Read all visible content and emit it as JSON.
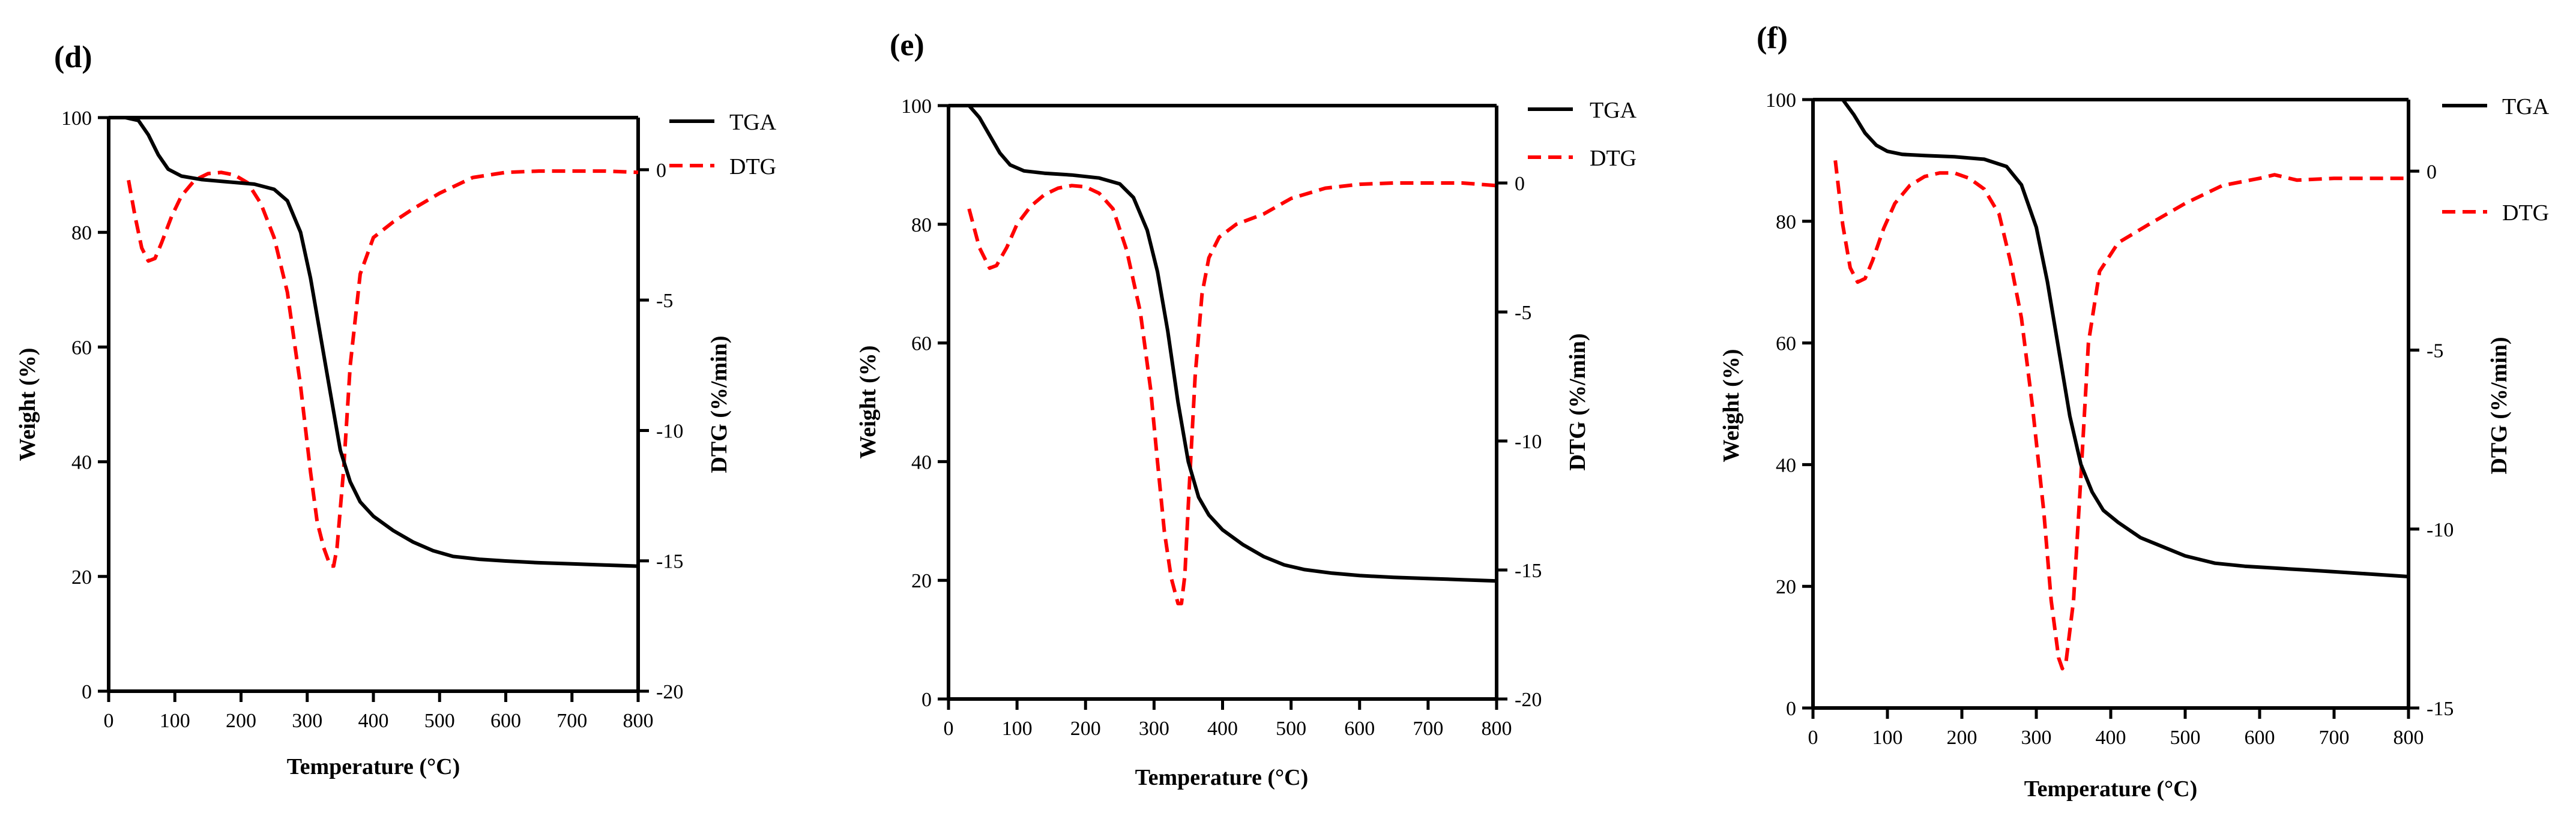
{
  "chart_data": [
    {
      "type": "line",
      "panel_label": "(d)",
      "xlabel": "Temperature (°C)",
      "ylabel_left": "Weight (%)",
      "ylabel_right": "DTG (%/min)",
      "xlim": [
        0,
        800
      ],
      "ylim_left": [
        0,
        100
      ],
      "ylim_right": [
        -20,
        2
      ],
      "x_ticks": [
        0,
        100,
        200,
        300,
        400,
        500,
        600,
        700,
        800
      ],
      "y_left_ticks": [
        0,
        20,
        40,
        60,
        80,
        100
      ],
      "y_right_ticks": [
        0,
        -5,
        -10,
        -15,
        -20
      ],
      "legend": [
        "TGA",
        "DTG"
      ],
      "series": [
        {
          "name": "TGA",
          "x": [
            0,
            25,
            45,
            60,
            75,
            90,
            110,
            140,
            180,
            220,
            250,
            270,
            290,
            305,
            320,
            335,
            350,
            365,
            380,
            400,
            430,
            460,
            490,
            520,
            560,
            600,
            650,
            700,
            750,
            800
          ],
          "values": [
            100,
            100,
            99.5,
            97,
            93.5,
            91,
            89.8,
            89.2,
            88.8,
            88.4,
            87.5,
            85.5,
            80,
            72,
            62,
            52,
            42,
            36.5,
            33,
            30.5,
            28,
            26,
            24.5,
            23.5,
            23,
            22.7,
            22.4,
            22.2,
            22,
            21.8
          ]
        },
        {
          "name": "DTG",
          "x": [
            30,
            40,
            50,
            60,
            70,
            80,
            95,
            110,
            130,
            150,
            170,
            190,
            210,
            230,
            250,
            270,
            290,
            305,
            315,
            325,
            335,
            340,
            345,
            355,
            365,
            380,
            400,
            430,
            460,
            500,
            550,
            600,
            650,
            700,
            750,
            800
          ],
          "values": [
            -0.4,
            -1.8,
            -3.0,
            -3.5,
            -3.4,
            -2.8,
            -1.8,
            -1.0,
            -0.4,
            -0.15,
            -0.1,
            -0.2,
            -0.5,
            -1.3,
            -2.6,
            -4.7,
            -8.3,
            -11.6,
            -13.5,
            -14.5,
            -15.2,
            -15.2,
            -14.5,
            -11.5,
            -7.5,
            -4.0,
            -2.6,
            -2.0,
            -1.5,
            -0.9,
            -0.3,
            -0.1,
            -0.05,
            -0.05,
            -0.05,
            -0.1
          ]
        }
      ]
    },
    {
      "type": "line",
      "panel_label": "(e)",
      "xlabel": "Temperature (°C)",
      "ylabel_left": "Weight (%)",
      "ylabel_right": "DTG (%/min)",
      "xlim": [
        0,
        800
      ],
      "ylim_left": [
        0,
        100
      ],
      "ylim_right": [
        -20,
        3
      ],
      "x_ticks": [
        0,
        100,
        200,
        300,
        400,
        500,
        600,
        700,
        800
      ],
      "y_left_ticks": [
        0,
        20,
        40,
        60,
        80,
        100
      ],
      "y_right_ticks": [
        0,
        -5,
        -10,
        -15,
        -20
      ],
      "legend": [
        "TGA",
        "DTG"
      ],
      "series": [
        {
          "name": "TGA",
          "x": [
            30,
            45,
            60,
            75,
            90,
            110,
            140,
            180,
            220,
            250,
            270,
            290,
            305,
            320,
            335,
            350,
            365,
            380,
            400,
            430,
            460,
            490,
            520,
            560,
            600,
            650,
            700,
            750,
            800
          ],
          "values": [
            100,
            98,
            95,
            92,
            90,
            89,
            88.6,
            88.3,
            87.8,
            86.8,
            84.5,
            79,
            72,
            62,
            50,
            40,
            34,
            31,
            28.5,
            26,
            24,
            22.6,
            21.8,
            21.2,
            20.8,
            20.5,
            20.3,
            20.1,
            19.9
          ]
        },
        {
          "name": "DTG",
          "x": [
            30,
            45,
            60,
            70,
            85,
            100,
            120,
            140,
            160,
            180,
            200,
            220,
            240,
            260,
            280,
            295,
            305,
            315,
            325,
            335,
            340,
            345,
            350,
            360,
            370,
            380,
            395,
            420,
            460,
            500,
            550,
            600,
            650,
            700,
            750,
            800
          ],
          "values": [
            -1.0,
            -2.5,
            -3.3,
            -3.2,
            -2.5,
            -1.6,
            -0.9,
            -0.45,
            -0.2,
            -0.1,
            -0.15,
            -0.4,
            -1.0,
            -2.6,
            -5.0,
            -8.0,
            -10.8,
            -13.5,
            -15.3,
            -16.3,
            -16.3,
            -15.2,
            -12.5,
            -7.5,
            -4.3,
            -2.9,
            -2.1,
            -1.6,
            -1.2,
            -0.6,
            -0.2,
            -0.05,
            0,
            0,
            0,
            -0.1
          ]
        }
      ]
    },
    {
      "type": "line",
      "panel_label": "(f)",
      "xlabel": "Temperature (°C)",
      "ylabel_left": "Weight (%)",
      "ylabel_right": "DTG (%/min)",
      "xlim": [
        0,
        800
      ],
      "ylim_left": [
        0,
        100
      ],
      "ylim_right": [
        -15,
        2
      ],
      "x_ticks": [
        0,
        100,
        200,
        300,
        400,
        500,
        600,
        700,
        800
      ],
      "y_left_ticks": [
        0,
        20,
        40,
        60,
        80,
        100
      ],
      "y_right_ticks": [
        0,
        -5,
        -10,
        -15
      ],
      "legend": [
        "TGA",
        "DTG"
      ],
      "series": [
        {
          "name": "TGA",
          "x": [
            0,
            40,
            55,
            70,
            85,
            100,
            120,
            150,
            190,
            230,
            260,
            280,
            300,
            315,
            330,
            345,
            360,
            375,
            390,
            410,
            440,
            470,
            500,
            540,
            580,
            620,
            660,
            700,
            750,
            800
          ],
          "values": [
            100,
            100,
            97.5,
            94.5,
            92.5,
            91.5,
            91,
            90.8,
            90.6,
            90.2,
            89,
            86,
            79,
            70,
            59,
            48,
            40,
            35.5,
            32.5,
            30.5,
            28,
            26.5,
            25,
            23.8,
            23.3,
            23,
            22.7,
            22.4,
            22,
            21.6
          ]
        },
        {
          "name": "DTG",
          "x": [
            30,
            40,
            50,
            60,
            70,
            80,
            95,
            110,
            130,
            150,
            170,
            190,
            210,
            230,
            250,
            265,
            280,
            295,
            310,
            320,
            330,
            335,
            340,
            350,
            360,
            370,
            385,
            410,
            450,
            500,
            550,
            600,
            620,
            650,
            700,
            750,
            800
          ],
          "values": [
            0.3,
            -1.5,
            -2.7,
            -3.1,
            -3.0,
            -2.5,
            -1.6,
            -0.9,
            -0.4,
            -0.15,
            -0.05,
            -0.05,
            -0.2,
            -0.5,
            -1.2,
            -2.5,
            -4.1,
            -6.6,
            -9.5,
            -12.0,
            -13.6,
            -13.9,
            -13.7,
            -12.0,
            -8.5,
            -4.8,
            -2.8,
            -2.0,
            -1.5,
            -0.9,
            -0.4,
            -0.2,
            -0.1,
            -0.25,
            -0.2,
            -0.2,
            -0.2
          ]
        }
      ]
    }
  ]
}
